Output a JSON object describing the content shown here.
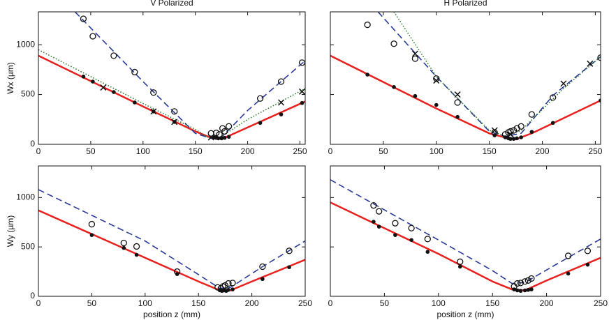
{
  "chart_data": [
    {
      "type": "line",
      "title": "V Polarized",
      "y_label": "Wx (µm)",
      "xlim": [
        0,
        255
      ],
      "ylim": [
        0,
        1330
      ],
      "xticks": [
        0,
        50,
        100,
        150,
        200,
        250
      ],
      "yticks": [
        0,
        500,
        1000
      ],
      "show_ytick_labels": true,
      "series": [
        {
          "kind": "line",
          "dash": "solid",
          "color": "#e8201e",
          "x": [
            0,
            100,
            150,
            165,
            170,
            180,
            200,
            255
          ],
          "values": [
            890,
            380,
            130,
            65,
            55,
            75,
            170,
            430
          ]
        },
        {
          "kind": "line",
          "dash": "dashed",
          "color": "#2a3a9a",
          "x": [
            35,
            100,
            150,
            165,
            175,
            200,
            255
          ],
          "values": [
            1330,
            630,
            110,
            60,
            70,
            340,
            840
          ]
        },
        {
          "kind": "line",
          "dash": "dotted",
          "color": "#2e7a2e",
          "x": [
            0,
            100,
            150,
            165,
            175,
            200,
            255
          ],
          "values": [
            950,
            410,
            150,
            50,
            80,
            250,
            560
          ]
        },
        {
          "kind": "points",
          "marker": "dot",
          "color": "#111111",
          "x": [
            43,
            52,
            72,
            92,
            110,
            130,
            168,
            170,
            172,
            175,
            178,
            182,
            212,
            232,
            252
          ],
          "values": [
            680,
            630,
            525,
            420,
            330,
            225,
            70,
            65,
            60,
            60,
            65,
            75,
            215,
            300,
            415
          ]
        },
        {
          "kind": "points",
          "marker": "circle",
          "color": "#111111",
          "x": [
            43,
            52,
            72,
            92,
            110,
            130,
            165,
            170,
            173,
            176,
            178,
            182,
            212,
            232,
            252
          ],
          "values": [
            1260,
            1085,
            890,
            725,
            520,
            330,
            110,
            115,
            100,
            160,
            130,
            180,
            460,
            630,
            820
          ]
        },
        {
          "kind": "points",
          "marker": "cross",
          "color": "#111111",
          "x": [
            62,
            110,
            130,
            165,
            232,
            252
          ],
          "values": [
            570,
            330,
            225,
            70,
            420,
            530
          ]
        }
      ]
    },
    {
      "type": "line",
      "title": "H Polarized",
      "xlim": [
        0,
        255
      ],
      "ylim": [
        0,
        1330
      ],
      "xticks": [
        0,
        50,
        100,
        150,
        200,
        250
      ],
      "yticks": [
        0,
        500,
        1000
      ],
      "show_ytick_labels": false,
      "series": [
        {
          "kind": "line",
          "dash": "solid",
          "color": "#e8201e",
          "x": [
            0,
            100,
            150,
            168,
            175,
            190,
            255
          ],
          "values": [
            890,
            360,
            110,
            60,
            50,
            110,
            440
          ]
        },
        {
          "kind": "line",
          "dash": "dashed",
          "color": "#2a3a9a",
          "x": [
            45,
            100,
            150,
            165,
            180,
            210,
            255
          ],
          "values": [
            1330,
            680,
            130,
            80,
            110,
            490,
            880
          ]
        },
        {
          "kind": "line",
          "dash": "dotted",
          "color": "#2e7a2e",
          "x": [
            60,
            100,
            150,
            165,
            180,
            220,
            255
          ],
          "values": [
            1330,
            680,
            140,
            80,
            140,
            560,
            880
          ]
        },
        {
          "kind": "points",
          "marker": "dot",
          "color": "#111111",
          "x": [
            35,
            60,
            80,
            100,
            120,
            155,
            165,
            168,
            170,
            173,
            176,
            180,
            190,
            210,
            255
          ],
          "values": [
            700,
            575,
            485,
            395,
            275,
            90,
            70,
            60,
            55,
            55,
            60,
            70,
            125,
            215,
            440
          ]
        },
        {
          "kind": "points",
          "marker": "circle",
          "color": "#111111",
          "x": [
            35,
            60,
            80,
            100,
            120,
            155,
            165,
            168,
            170,
            173,
            176,
            180,
            190,
            210,
            255
          ],
          "values": [
            1200,
            1010,
            860,
            660,
            420,
            120,
            100,
            120,
            130,
            140,
            160,
            180,
            300,
            470,
            870
          ]
        },
        {
          "kind": "points",
          "marker": "cross",
          "color": "#111111",
          "x": [
            80,
            100,
            120,
            155,
            170,
            220,
            245
          ],
          "values": [
            910,
            640,
            500,
            140,
            100,
            610,
            810
          ]
        }
      ]
    },
    {
      "type": "line",
      "y_label": "Wy (µm)",
      "x_label": "position z (mm)",
      "xlim": [
        0,
        250
      ],
      "ylim": [
        0,
        1320
      ],
      "xticks": [
        0,
        50,
        100,
        150,
        200,
        250
      ],
      "yticks": [
        0,
        500,
        1000
      ],
      "show_ytick_labels": true,
      "series": [
        {
          "kind": "line",
          "dash": "solid",
          "color": "#e8201e",
          "x": [
            0,
            100,
            150,
            170,
            180,
            200,
            250
          ],
          "values": [
            870,
            390,
            150,
            60,
            60,
            150,
            370
          ]
        },
        {
          "kind": "line",
          "dash": "dashed",
          "color": "#2a3a9a",
          "x": [
            0,
            100,
            150,
            170,
            180,
            210,
            250
          ],
          "values": [
            1080,
            560,
            220,
            80,
            90,
            300,
            560
          ]
        },
        {
          "kind": "points",
          "marker": "dot",
          "color": "#111111",
          "x": [
            50,
            80,
            92,
            130,
            170,
            172,
            174,
            176,
            178,
            182,
            210,
            235
          ],
          "values": [
            620,
            490,
            420,
            225,
            60,
            55,
            60,
            55,
            65,
            70,
            175,
            295
          ]
        },
        {
          "kind": "points",
          "marker": "circle",
          "color": "#111111",
          "x": [
            50,
            80,
            92,
            130,
            168,
            171,
            173,
            175,
            178,
            182,
            210,
            235
          ],
          "values": [
            730,
            540,
            505,
            250,
            90,
            80,
            100,
            110,
            130,
            135,
            300,
            460
          ]
        }
      ]
    },
    {
      "type": "line",
      "x_label": "position z (mm)",
      "xlim": [
        0,
        250
      ],
      "ylim": [
        0,
        1320
      ],
      "xticks": [
        0,
        50,
        100,
        150,
        200,
        250
      ],
      "yticks": [
        0,
        500,
        1000
      ],
      "show_ytick_labels": false,
      "series": [
        {
          "kind": "line",
          "dash": "solid",
          "color": "#e8201e",
          "x": [
            0,
            100,
            150,
            168,
            180,
            200,
            250
          ],
          "values": [
            950,
            430,
            150,
            70,
            60,
            160,
            390
          ]
        },
        {
          "kind": "line",
          "dash": "dashed",
          "color": "#2a3a9a",
          "x": [
            0,
            100,
            150,
            168,
            180,
            210,
            250
          ],
          "values": [
            1180,
            570,
            260,
            130,
            140,
            330,
            580
          ]
        },
        {
          "kind": "points",
          "marker": "dot",
          "color": "#111111",
          "x": [
            40,
            45,
            60,
            75,
            90,
            120,
            170,
            173,
            176,
            180,
            183,
            186,
            220,
            238
          ],
          "values": [
            755,
            705,
            620,
            570,
            450,
            300,
            70,
            60,
            55,
            60,
            65,
            70,
            230,
            320
          ]
        },
        {
          "kind": "points",
          "marker": "circle",
          "color": "#111111",
          "x": [
            40,
            45,
            60,
            75,
            90,
            120,
            170,
            173,
            176,
            180,
            183,
            186,
            220,
            238
          ],
          "values": [
            920,
            860,
            740,
            690,
            580,
            350,
            100,
            130,
            135,
            150,
            160,
            180,
            410,
            460
          ]
        }
      ]
    }
  ]
}
